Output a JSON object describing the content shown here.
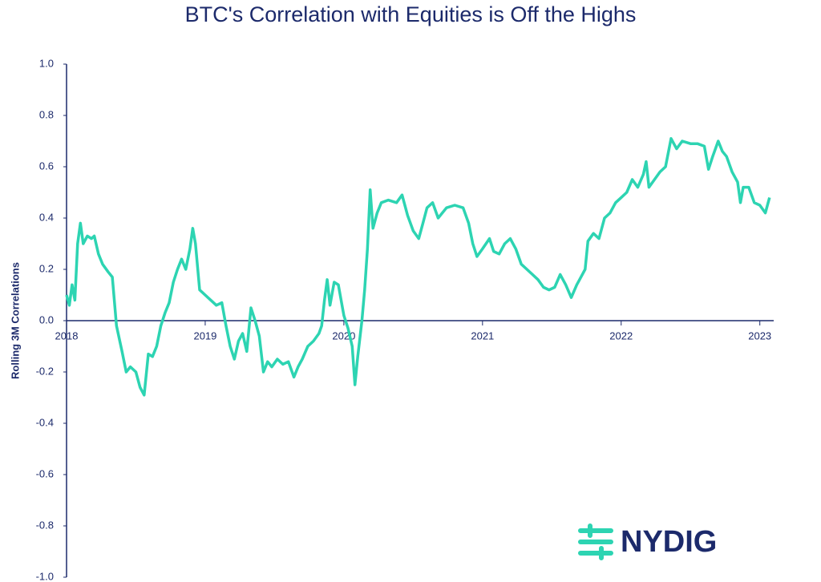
{
  "chart_data": {
    "type": "line",
    "title": "BTC's Correlation with Equities is Off the Highs",
    "y_label": "Rolling 3M Correlations",
    "x": [
      2018.0,
      2018.02,
      2018.04,
      2018.06,
      2018.08,
      2018.1,
      2018.12,
      2018.15,
      2018.18,
      2018.2,
      2018.23,
      2018.26,
      2018.3,
      2018.33,
      2018.36,
      2018.4,
      2018.43,
      2018.46,
      2018.5,
      2018.53,
      2018.56,
      2018.59,
      2018.62,
      2018.65,
      2018.68,
      2018.71,
      2018.74,
      2018.77,
      2018.8,
      2018.83,
      2018.86,
      2018.89,
      2018.91,
      2018.93,
      2018.96,
      2019.0,
      2019.04,
      2019.08,
      2019.12,
      2019.15,
      2019.18,
      2019.21,
      2019.24,
      2019.27,
      2019.3,
      2019.33,
      2019.36,
      2019.39,
      2019.42,
      2019.45,
      2019.48,
      2019.52,
      2019.56,
      2019.6,
      2019.64,
      2019.67,
      2019.7,
      2019.74,
      2019.78,
      2019.82,
      2019.84,
      2019.86,
      2019.88,
      2019.9,
      2019.93,
      2019.96,
      2020.0,
      2020.03,
      2020.06,
      2020.08,
      2020.1,
      2020.13,
      2020.15,
      2020.17,
      2020.19,
      2020.21,
      2020.24,
      2020.27,
      2020.32,
      2020.38,
      2020.42,
      2020.46,
      2020.5,
      2020.54,
      2020.57,
      2020.6,
      2020.64,
      2020.68,
      2020.74,
      2020.8,
      2020.86,
      2020.9,
      2020.93,
      2020.96,
      2021.0,
      2021.05,
      2021.08,
      2021.12,
      2021.16,
      2021.2,
      2021.24,
      2021.28,
      2021.32,
      2021.36,
      2021.4,
      2021.44,
      2021.48,
      2021.52,
      2021.56,
      2021.6,
      2021.64,
      2021.68,
      2021.7,
      2021.74,
      2021.76,
      2021.8,
      2021.84,
      2021.88,
      2021.92,
      2021.96,
      2022.0,
      2022.04,
      2022.08,
      2022.12,
      2022.16,
      2022.18,
      2022.2,
      2022.24,
      2022.28,
      2022.32,
      2022.36,
      2022.4,
      2022.44,
      2022.5,
      2022.55,
      2022.6,
      2022.63,
      2022.66,
      2022.7,
      2022.73,
      2022.76,
      2022.8,
      2022.84,
      2022.86,
      2022.88,
      2022.92,
      2022.96,
      2023.0,
      2023.04,
      2023.07
    ],
    "series": [
      {
        "name": "Rolling 3M Correlation",
        "color": "#2dd4b2",
        "values": [
          0.1,
          0.06,
          0.14,
          0.08,
          0.3,
          0.38,
          0.3,
          0.33,
          0.32,
          0.33,
          0.26,
          0.22,
          0.19,
          0.17,
          -0.02,
          -0.12,
          -0.2,
          -0.18,
          -0.2,
          -0.26,
          -0.29,
          -0.13,
          -0.14,
          -0.1,
          -0.02,
          0.03,
          0.07,
          0.15,
          0.2,
          0.24,
          0.2,
          0.28,
          0.36,
          0.3,
          0.12,
          0.1,
          0.08,
          0.06,
          0.07,
          -0.02,
          -0.1,
          -0.15,
          -0.08,
          -0.05,
          -0.12,
          0.05,
          0.0,
          -0.06,
          -0.2,
          -0.16,
          -0.18,
          -0.15,
          -0.17,
          -0.16,
          -0.22,
          -0.18,
          -0.15,
          -0.1,
          -0.08,
          -0.05,
          -0.02,
          0.08,
          0.16,
          0.06,
          0.15,
          0.14,
          0.02,
          -0.03,
          -0.1,
          -0.25,
          -0.14,
          0.0,
          0.12,
          0.28,
          0.51,
          0.36,
          0.42,
          0.46,
          0.47,
          0.46,
          0.49,
          0.41,
          0.35,
          0.32,
          0.38,
          0.44,
          0.46,
          0.4,
          0.44,
          0.45,
          0.44,
          0.38,
          0.3,
          0.25,
          0.28,
          0.32,
          0.27,
          0.26,
          0.3,
          0.32,
          0.28,
          0.22,
          0.2,
          0.18,
          0.16,
          0.13,
          0.12,
          0.13,
          0.18,
          0.14,
          0.09,
          0.14,
          0.16,
          0.2,
          0.31,
          0.34,
          0.32,
          0.4,
          0.42,
          0.46,
          0.48,
          0.5,
          0.55,
          0.52,
          0.57,
          0.62,
          0.52,
          0.55,
          0.58,
          0.6,
          0.71,
          0.67,
          0.7,
          0.69,
          0.69,
          0.68,
          0.59,
          0.64,
          0.7,
          0.66,
          0.64,
          0.58,
          0.54,
          0.46,
          0.52,
          0.52,
          0.46,
          0.45,
          0.42,
          0.48
        ]
      }
    ],
    "xlim": [
      2018,
      2023.1
    ],
    "xticks": [
      2018,
      2019,
      2020,
      2021,
      2022,
      2023
    ],
    "ylim": [
      -1,
      1
    ],
    "yticks": [
      {
        "value": -1,
        "label": "-1.0"
      },
      -0.8,
      -0.6,
      -0.4,
      -0.2,
      {
        "value": 0,
        "label": "0.0"
      },
      0.2,
      0.4,
      0.6,
      0.8,
      {
        "value": 1,
        "label": "1.0"
      }
    ],
    "grid": false
  },
  "logo": {
    "text": "NYDIG"
  }
}
